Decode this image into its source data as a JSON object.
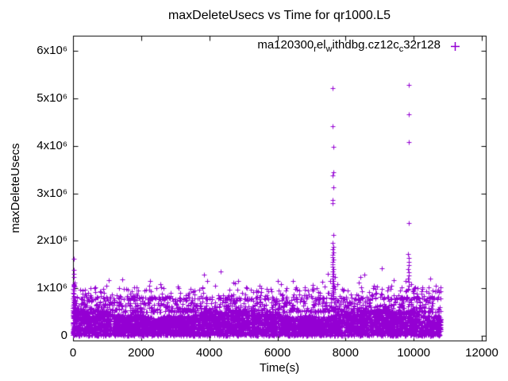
{
  "chart_data": {
    "type": "scatter",
    "title": "maxDeleteUsecs vs Time for qr1000.L5",
    "xlabel": "Time(s)",
    "ylabel": "maxDeleteUsecs",
    "grid": false,
    "legend_position": "top-right-inside",
    "xlim": [
      0,
      12000
    ],
    "ylim": [
      0,
      6000000
    ],
    "xticks": [
      {
        "value": 0,
        "label": "0"
      },
      {
        "value": 2000,
        "label": "2000"
      },
      {
        "value": 4000,
        "label": "4000"
      },
      {
        "value": 6000,
        "label": "6000"
      },
      {
        "value": 8000,
        "label": "8000"
      },
      {
        "value": 10000,
        "label": "10000"
      },
      {
        "value": 12000,
        "label": "12000"
      }
    ],
    "yticks": [
      {
        "value": 0,
        "label": "0"
      },
      {
        "value": 1000000,
        "label": "1x10⁶"
      },
      {
        "value": 2000000,
        "label": "2x10⁶"
      },
      {
        "value": 3000000,
        "label": "3x10⁶"
      },
      {
        "value": 4000000,
        "label": "4x10⁶"
      },
      {
        "value": 5000000,
        "label": "5x10⁶"
      },
      {
        "value": 6000000,
        "label": "6x10⁶"
      }
    ],
    "series": [
      {
        "name": "ma120300_rel_withdbg.cz12c_c32r128",
        "legend_parts": [
          {
            "text": "ma120300"
          },
          {
            "text": "r",
            "sub": true
          },
          {
            "text": "el"
          },
          {
            "text": "w",
            "sub": true
          },
          {
            "text": "ithdbg.cz12c"
          },
          {
            "text": "c",
            "sub": true
          },
          {
            "text": "32r128"
          }
        ],
        "marker": "plus",
        "color": "#9400D3"
      }
    ],
    "outliers": [
      [
        15,
        1620000
      ],
      [
        25,
        1380000
      ],
      [
        30,
        1300000
      ],
      [
        20,
        1230000
      ],
      [
        40,
        1120000
      ],
      [
        55,
        1040000
      ],
      [
        10,
        980000
      ],
      [
        640,
        1010000
      ],
      [
        980,
        1060000
      ],
      [
        1442,
        1180000
      ],
      [
        1791,
        1020000
      ],
      [
        2230,
        1050000
      ],
      [
        2560,
        1090000
      ],
      [
        3070,
        1030000
      ],
      [
        3440,
        990000
      ],
      [
        3837,
        1280000
      ],
      [
        3930,
        1150000
      ],
      [
        4326,
        1350000
      ],
      [
        4180,
        1050000
      ],
      [
        4700,
        1120000
      ],
      [
        5100,
        1010000
      ],
      [
        5480,
        1060000
      ],
      [
        5800,
        990000
      ],
      [
        6100,
        1080000
      ],
      [
        6465,
        1150000
      ],
      [
        6800,
        1020000
      ],
      [
        7047,
        1070000
      ],
      [
        7620,
        5220000
      ],
      [
        7630,
        4420000
      ],
      [
        7645,
        3970000
      ],
      [
        7635,
        3450000
      ],
      [
        7620,
        3380000
      ],
      [
        7640,
        3120000
      ],
      [
        7615,
        2850000
      ],
      [
        7630,
        2790000
      ],
      [
        7635,
        2120000
      ],
      [
        7612,
        1950000
      ],
      [
        7640,
        1880000
      ],
      [
        7618,
        1820000
      ],
      [
        7632,
        1760000
      ],
      [
        7625,
        1700000
      ],
      [
        7610,
        1650000
      ],
      [
        7638,
        1600000
      ],
      [
        7622,
        1550000
      ],
      [
        7630,
        1500000
      ],
      [
        7615,
        1450000
      ],
      [
        7642,
        1400000
      ],
      [
        7620,
        1350000
      ],
      [
        7635,
        1300000
      ],
      [
        7612,
        1250000
      ],
      [
        7628,
        1200000
      ],
      [
        7645,
        1150000
      ],
      [
        7618,
        1100000
      ],
      [
        7633,
        1050000
      ],
      [
        7625,
        1000000
      ],
      [
        7610,
        950000
      ],
      [
        7480,
        1300000
      ],
      [
        7540,
        1150000
      ],
      [
        7700,
        1240000
      ],
      [
        7760,
        1080000
      ],
      [
        7900,
        980000
      ],
      [
        8060,
        950000
      ],
      [
        8440,
        1230000
      ],
      [
        8560,
        1280000
      ],
      [
        8800,
        1000000
      ],
      [
        8870,
        980000
      ],
      [
        9070,
        1420000
      ],
      [
        9350,
        1050000
      ],
      [
        9845,
        5280000
      ],
      [
        9852,
        4660000
      ],
      [
        9848,
        4070000
      ],
      [
        9850,
        2370000
      ],
      [
        9838,
        1720000
      ],
      [
        9858,
        1640000
      ],
      [
        9845,
        1560000
      ],
      [
        9852,
        1480000
      ],
      [
        9840,
        1410000
      ],
      [
        9860,
        1340000
      ],
      [
        9848,
        1270000
      ],
      [
        9842,
        1200000
      ],
      [
        9855,
        1130000
      ],
      [
        9850,
        1060000
      ],
      [
        9844,
        990000
      ],
      [
        9760,
        1150000
      ],
      [
        9930,
        1090000
      ],
      [
        10000,
        980000
      ],
      [
        10250,
        1020000
      ],
      [
        10490,
        1200000
      ],
      [
        10650,
        1050000
      ],
      [
        10720,
        970000
      ],
      [
        10780,
        1020000
      ]
    ],
    "noise_band": {
      "seed": 1337,
      "t_min": 0,
      "t_max": 10800,
      "groups": [
        {
          "count": 5200,
          "v_base": 0,
          "v_span": 560000,
          "pow": 1,
          "wavy": true
        },
        {
          "count": 950,
          "v_base": 500000,
          "v_span": 320000,
          "pow": 1.7
        },
        {
          "count": 300,
          "v_base": 780000,
          "v_span": 240000,
          "pow": 2
        },
        {
          "count": 55,
          "t_cap": 45,
          "v_base": 0,
          "v_span": 1150000,
          "pow": 1.6
        },
        {
          "count": 18,
          "v_base": 1000000,
          "v_span": 180000,
          "pow": 2
        }
      ]
    }
  }
}
